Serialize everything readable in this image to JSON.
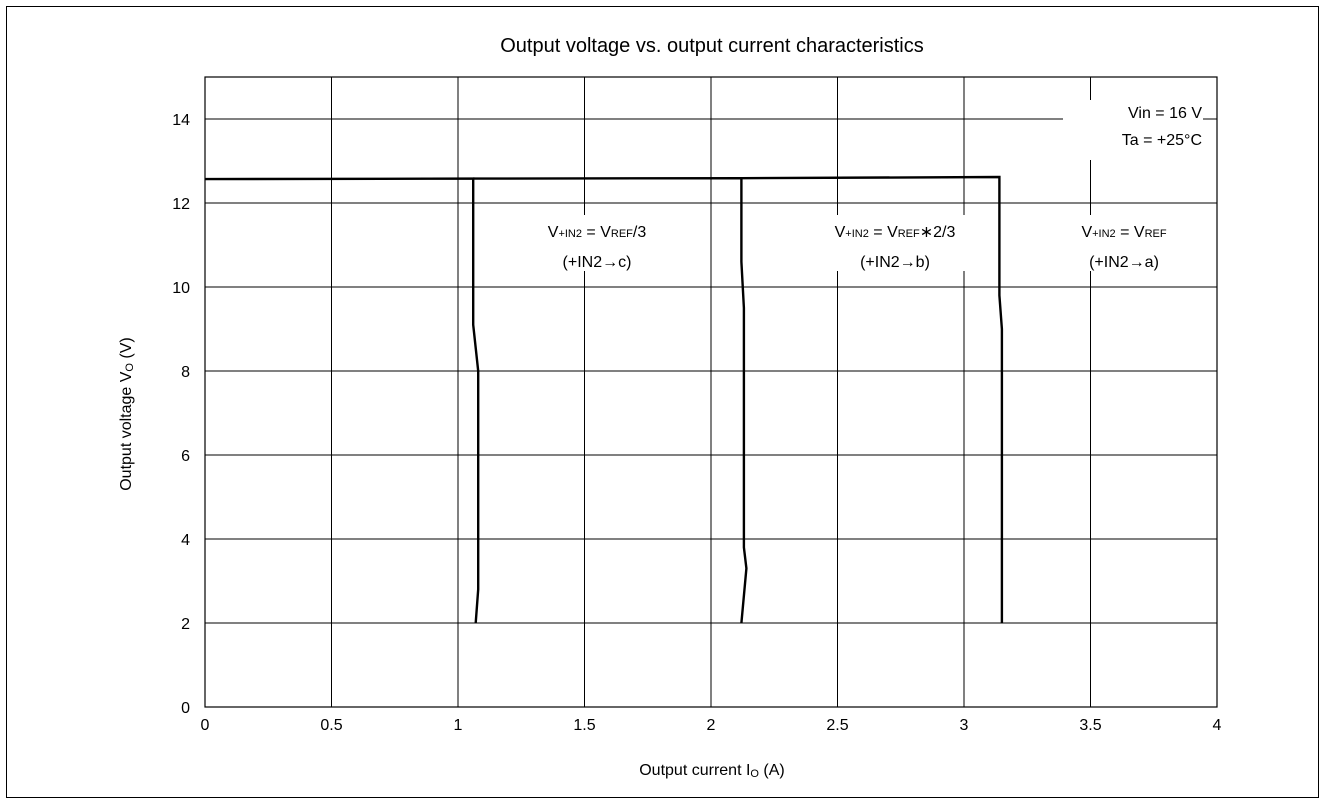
{
  "chart_data": {
    "type": "line",
    "title": "Output voltage vs. output current characteristics",
    "xlabel": {
      "main": "Output current I",
      "sub": "O",
      "unit": " (A)"
    },
    "ylabel": {
      "main": "Output voltage V",
      "sub": "O",
      "unit": " (V)"
    },
    "xlim": [
      0,
      4
    ],
    "ylim": [
      0,
      15
    ],
    "xticks": [
      "0",
      "0.5",
      "1",
      "1.5",
      "2",
      "2.5",
      "3",
      "3.5",
      "4"
    ],
    "yticks": [
      "0",
      "2",
      "4",
      "6",
      "8",
      "10",
      "12",
      "14"
    ],
    "grid": true,
    "conditions": [
      "Vin = 16 V",
      "Ta = +25°C"
    ],
    "series": [
      {
        "label": {
          "v": "V",
          "sub1": "+IN2",
          "eq": " = V",
          "sub2": "REF",
          "tail": "/3",
          "line2": "(+IN2→c)"
        },
        "points": [
          [
            0,
            12.57
          ],
          [
            1.06,
            12.58
          ],
          [
            1.06,
            9.1
          ],
          [
            1.08,
            8.0
          ],
          [
            1.08,
            2.8
          ],
          [
            1.07,
            2.0
          ]
        ]
      },
      {
        "label": {
          "v": "V",
          "sub1": "+IN2",
          "eq": " = V",
          "sub2": "REF",
          "tail": "∗2/3",
          "line2": "(+IN2→b)"
        },
        "points": [
          [
            1.06,
            12.58
          ],
          [
            2.12,
            12.59
          ],
          [
            2.12,
            10.6
          ],
          [
            2.13,
            9.5
          ],
          [
            2.13,
            3.8
          ],
          [
            2.14,
            3.3
          ],
          [
            2.12,
            2.0
          ]
        ]
      },
      {
        "label": {
          "v": "V",
          "sub1": "+IN2",
          "eq": " = V",
          "sub2": "REF",
          "tail": "",
          "line2": "(+IN2→a)"
        },
        "points": [
          [
            2.12,
            12.59
          ],
          [
            3.14,
            12.62
          ],
          [
            3.14,
            9.8
          ],
          [
            3.15,
            9.0
          ],
          [
            3.15,
            2.0
          ]
        ]
      }
    ]
  }
}
